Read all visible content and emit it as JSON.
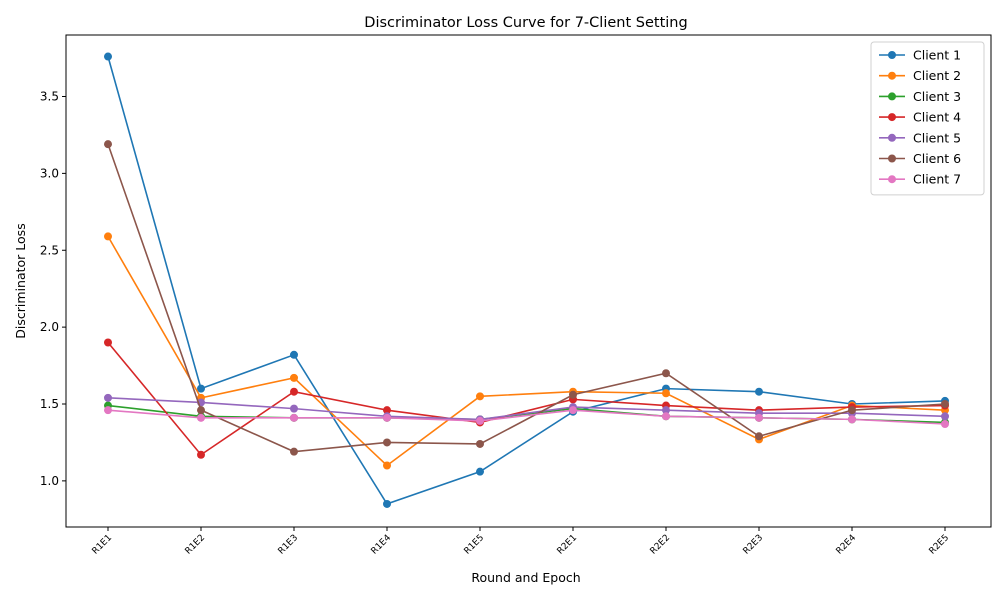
{
  "chart_data": {
    "type": "line",
    "title": "Discriminator Loss Curve for 7-Client Setting",
    "xlabel": "Round and Epoch",
    "ylabel": "Discriminator Loss",
    "categories": [
      "R1E1",
      "R1E2",
      "R1E3",
      "R1E4",
      "R1E5",
      "R2E1",
      "R2E2",
      "R2E3",
      "R2E4",
      "R2E5"
    ],
    "ylim": [
      0.7,
      3.9
    ],
    "yticks": [
      1.0,
      1.5,
      2.0,
      2.5,
      3.0,
      3.5
    ],
    "ytick_labels": [
      "1.0",
      "1.5",
      "2.0",
      "2.5",
      "3.0",
      "3.5"
    ],
    "grid": false,
    "legend_position": "top-right",
    "series": [
      {
        "name": "Client 1",
        "color": "#1f77b4",
        "values": [
          3.76,
          1.6,
          1.82,
          0.85,
          1.06,
          1.45,
          1.6,
          1.58,
          1.5,
          1.52
        ]
      },
      {
        "name": "Client 2",
        "color": "#ff7f0e",
        "values": [
          2.59,
          1.54,
          1.67,
          1.1,
          1.55,
          1.58,
          1.57,
          1.27,
          1.49,
          1.46
        ]
      },
      {
        "name": "Client 3",
        "color": "#2ca02c",
        "values": [
          1.49,
          1.42,
          1.41,
          1.41,
          1.4,
          1.47,
          1.42,
          1.41,
          1.4,
          1.38
        ]
      },
      {
        "name": "Client 4",
        "color": "#d62728",
        "values": [
          1.9,
          1.17,
          1.58,
          1.46,
          1.38,
          1.53,
          1.49,
          1.46,
          1.48,
          1.49
        ]
      },
      {
        "name": "Client 5",
        "color": "#9467bd",
        "values": [
          1.54,
          1.51,
          1.47,
          1.42,
          1.4,
          1.48,
          1.46,
          1.44,
          1.44,
          1.42
        ]
      },
      {
        "name": "Client 6",
        "color": "#8c564b",
        "values": [
          3.19,
          1.46,
          1.19,
          1.25,
          1.24,
          1.56,
          1.7,
          1.29,
          1.46,
          1.5
        ]
      },
      {
        "name": "Client 7",
        "color": "#e377c2",
        "values": [
          1.46,
          1.41,
          1.41,
          1.41,
          1.39,
          1.46,
          1.42,
          1.41,
          1.4,
          1.37
        ]
      }
    ]
  }
}
